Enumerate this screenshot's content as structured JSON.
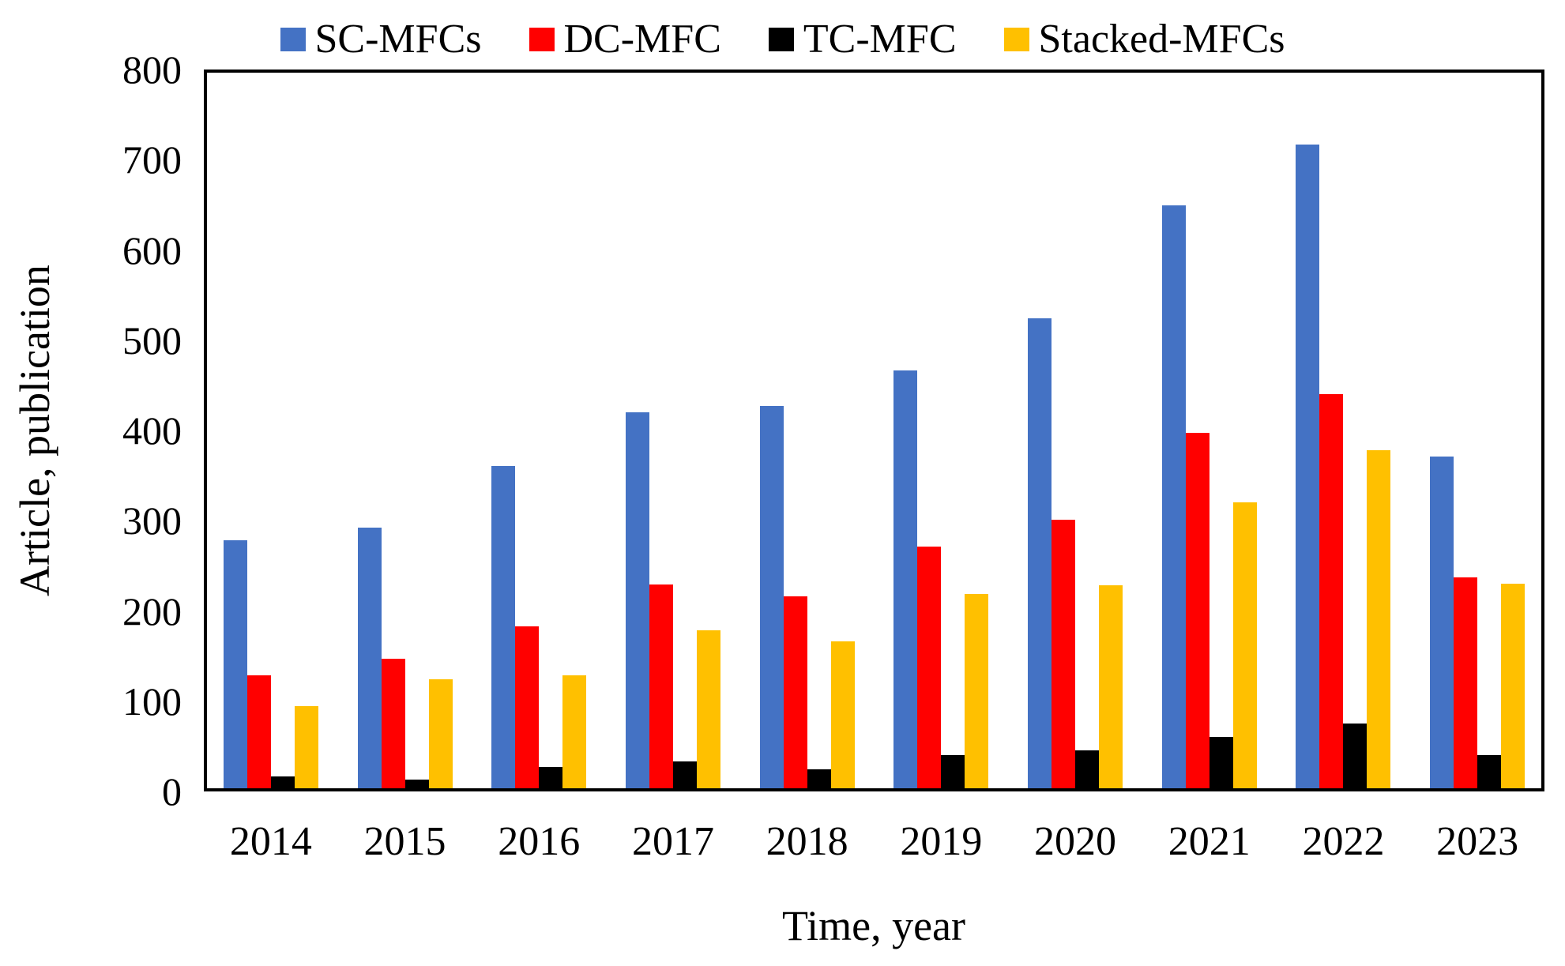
{
  "chart_data": {
    "type": "bar",
    "title": "",
    "categories": [
      "2014",
      "2015",
      "2016",
      "2017",
      "2018",
      "2019",
      "2020",
      "2021",
      "2022",
      "2023"
    ],
    "series": [
      {
        "name": "SC-MFCs",
        "color": "#4472C4",
        "values": [
          277,
          291,
          360,
          420,
          427,
          467,
          525,
          652,
          720,
          371
        ]
      },
      {
        "name": "DC-MFC",
        "color": "#FF0000",
        "values": [
          126,
          145,
          181,
          228,
          215,
          270,
          300,
          397,
          441,
          236
        ]
      },
      {
        "name": "TC-MFC",
        "color": "#000000",
        "values": [
          13,
          10,
          24,
          30,
          21,
          37,
          42,
          57,
          72,
          37
        ]
      },
      {
        "name": "Stacked-MFCs",
        "color": "#FFC000",
        "values": [
          92,
          122,
          126,
          177,
          164,
          217,
          227,
          320,
          378,
          229
        ]
      }
    ],
    "xlabel": "Time, year",
    "ylabel": "Article, publication",
    "ylim": [
      0,
      800
    ],
    "ytick_step": 100,
    "ytick_labels": [
      "0",
      "100",
      "200",
      "300",
      "400",
      "500",
      "600",
      "700",
      "800"
    ],
    "grid": false,
    "legend_position": "top",
    "axis_color": "#000000",
    "plot_border": "box"
  }
}
